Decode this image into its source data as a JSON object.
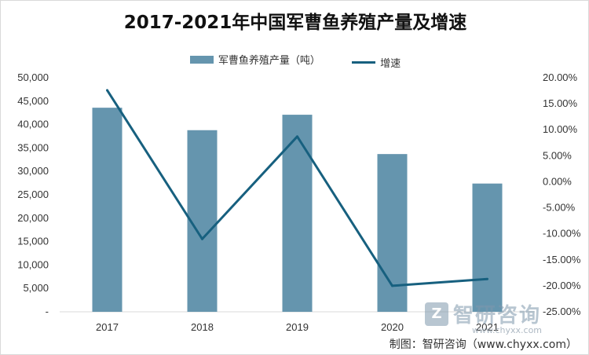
{
  "colors": {
    "bar": "#6595ae",
    "line": "#17607f",
    "grid": "#d9d9d9"
  },
  "watermark": {
    "logo_icon": "zhiyan-logo-icon",
    "text": "智研咨询",
    "url": "www.chyxx.com"
  },
  "source": "制图：智研咨询（www.chyxx.com）",
  "chart_data": {
    "type": "bar",
    "title": "2017-2021年中国军曹鱼养殖产量及增速",
    "categories": [
      "2017",
      "2018",
      "2019",
      "2020",
      "2021"
    ],
    "legend_position": "top",
    "grid": false,
    "series": [
      {
        "name": "军曹鱼养殖产量（吨）",
        "type": "bar",
        "axis": "left",
        "values": [
          43600,
          38800,
          42100,
          33700,
          27400
        ]
      },
      {
        "name": "增速",
        "type": "line",
        "axis": "right",
        "values": [
          17.6,
          -11.0,
          8.7,
          -20.0,
          -18.7
        ]
      }
    ],
    "y_left": {
      "min": 0,
      "max": 50000,
      "ticks": [
        0,
        5000,
        10000,
        15000,
        20000,
        25000,
        30000,
        35000,
        40000,
        45000,
        50000
      ],
      "tick_labels": [
        "-",
        "5,000",
        "10,000",
        "15,000",
        "20,000",
        "25,000",
        "30,000",
        "35,000",
        "40,000",
        "45,000",
        "50,000"
      ]
    },
    "y_right": {
      "min": -25,
      "max": 20,
      "ticks": [
        -25,
        -20,
        -15,
        -10,
        -5,
        0,
        5,
        10,
        15,
        20
      ],
      "tick_labels": [
        "-25.00%",
        "-20.00%",
        "-15.00%",
        "-10.00%",
        "-5.00%",
        "0.00%",
        "5.00%",
        "10.00%",
        "15.00%",
        "20.00%"
      ]
    }
  }
}
